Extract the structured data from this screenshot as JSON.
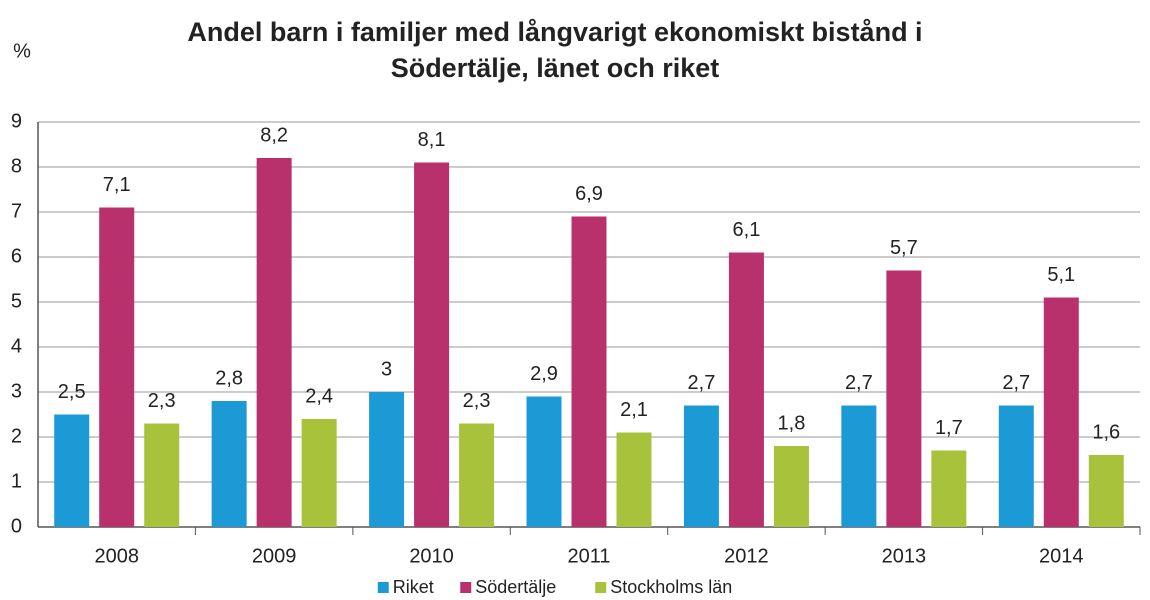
{
  "chart_data": {
    "type": "bar",
    "title": [
      "Andel barn i familjer med långvarigt ekonomiskt bistånd i",
      "Södertälje, länet och riket"
    ],
    "ylabel": "%",
    "categories": [
      "2008",
      "2009",
      "2010",
      "2011",
      "2012",
      "2013",
      "2014"
    ],
    "series": [
      {
        "name": "Riket",
        "color": "#1b9ad6",
        "values": [
          2.5,
          2.8,
          3,
          2.9,
          2.7,
          2.7,
          2.7
        ],
        "value_labels": [
          "2,5",
          "2,8",
          "3",
          "2,9",
          "2,7",
          "2,7",
          "2,7"
        ]
      },
      {
        "name": "Södertälje",
        "color": "#b8306c",
        "values": [
          7.1,
          8.2,
          8.1,
          6.9,
          6.1,
          5.7,
          5.1
        ],
        "value_labels": [
          "7,1",
          "8,2",
          "8,1",
          "6,9",
          "6,1",
          "5,7",
          "5,1"
        ]
      },
      {
        "name": "Stockholms län",
        "color": "#a9c23c",
        "values": [
          2.3,
          2.4,
          2.3,
          2.1,
          1.8,
          1.7,
          1.6
        ],
        "value_labels": [
          "2,3",
          "2,4",
          "2,3",
          "2,1",
          "1,8",
          "1,7",
          "1,6"
        ]
      }
    ],
    "ylim": [
      0,
      9
    ],
    "yticks": [
      0,
      1,
      2,
      3,
      4,
      5,
      6,
      7,
      8,
      9
    ],
    "grid": true,
    "legend": "bottom"
  }
}
